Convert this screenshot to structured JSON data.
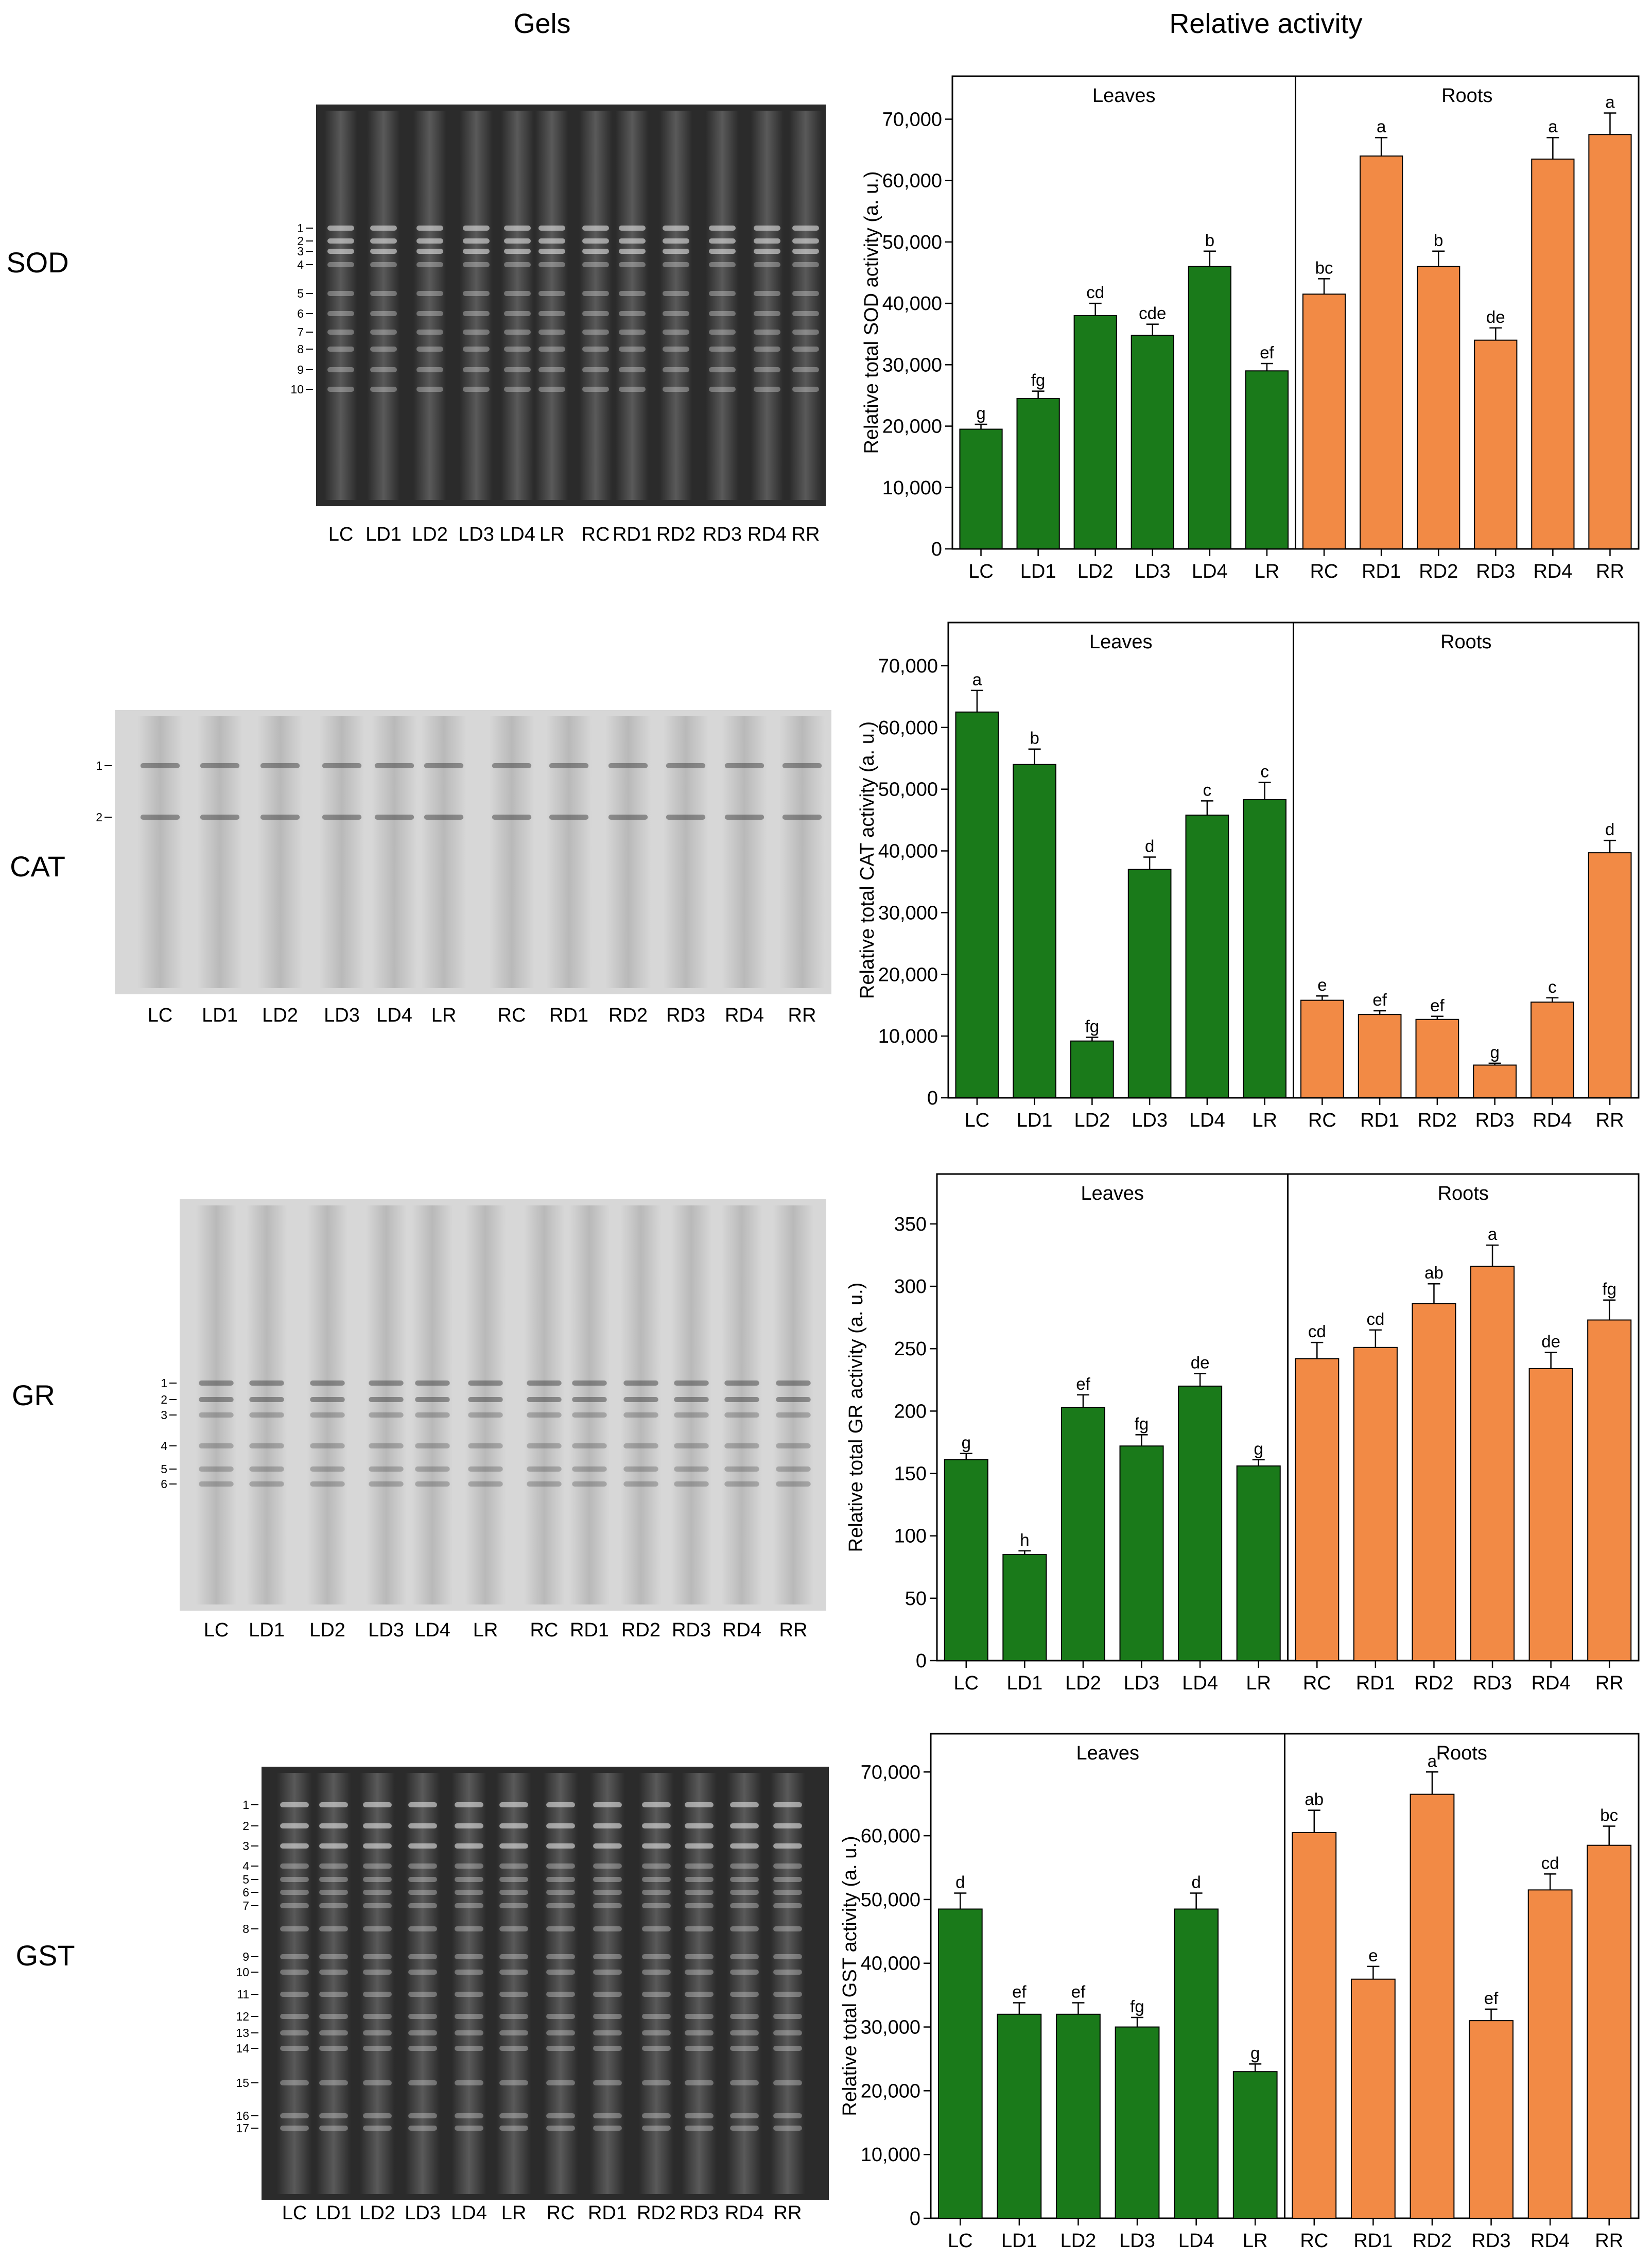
{
  "headers": {
    "gels": "Gels",
    "activity": "Relative activity"
  },
  "colors": {
    "leaves": "#1a7a1a",
    "roots": "#f28a45"
  },
  "panels": [
    {
      "enzyme": "SOD",
      "gel_style": "dark",
      "band_labels": [
        "1",
        "2",
        "3",
        "4",
        "5",
        "6",
        "7",
        "8",
        "9",
        "10"
      ],
      "gel_lanes": [
        "LC",
        "LD1",
        "LD2",
        "LD3",
        "LD4",
        "LR",
        "RC",
        "RD1",
        "RD2",
        "RD3",
        "RD4",
        "RR"
      ],
      "chart_data": {
        "type": "bar",
        "title": "SOD",
        "ylabel": "Relative total SOD activity (a. u.)",
        "ylim": [
          0,
          77000
        ],
        "yticks": [
          0,
          10000,
          20000,
          30000,
          40000,
          50000,
          60000,
          70000
        ],
        "ytick_labels": [
          "0",
          "10,000",
          "20,000",
          "30,000",
          "40,000",
          "50,000",
          "60,000",
          "70,000"
        ],
        "groups": [
          {
            "name": "Leaves",
            "categories": [
              "LC",
              "LD1",
              "LD2",
              "LD3",
              "LD4",
              "LR"
            ],
            "values": [
              19500,
              24500,
              38000,
              34800,
              46000,
              29000
            ],
            "errors": [
              800,
              1200,
              2000,
              1800,
              2500,
              1200
            ],
            "letters": [
              "g",
              "fg",
              "cd",
              "cde",
              "b",
              "ef"
            ]
          },
          {
            "name": "Roots",
            "categories": [
              "RC",
              "RD1",
              "RD2",
              "RD3",
              "RD4",
              "RR"
            ],
            "values": [
              41500,
              64000,
              46000,
              34000,
              63500,
              67500
            ],
            "errors": [
              2500,
              3000,
              2500,
              2000,
              3500,
              3500
            ],
            "letters": [
              "bc",
              "a",
              "b",
              "de",
              "a",
              "a"
            ]
          }
        ]
      }
    },
    {
      "enzyme": "CAT",
      "gel_style": "light",
      "band_labels": [
        "1",
        "2"
      ],
      "gel_lanes": [
        "LC",
        "LD1",
        "LD2",
        "LD3",
        "LD4",
        "LR",
        "RC",
        "RD1",
        "RD2",
        "RD3",
        "RD4",
        "RR"
      ],
      "chart_data": {
        "type": "bar",
        "title": "CAT",
        "ylabel": "Relative total CAT activity (a. u.)",
        "ylim": [
          0,
          77000
        ],
        "yticks": [
          0,
          10000,
          20000,
          30000,
          40000,
          50000,
          60000,
          70000
        ],
        "ytick_labels": [
          "0",
          "10,000",
          "20,000",
          "30,000",
          "40,000",
          "50,000",
          "60,000",
          "70,000"
        ],
        "groups": [
          {
            "name": "Leaves",
            "categories": [
              "LC",
              "LD1",
              "LD2",
              "LD3",
              "LD4",
              "LR"
            ],
            "values": [
              62500,
              54000,
              9200,
              37000,
              45800,
              48300
            ],
            "errors": [
              3500,
              2500,
              600,
              2000,
              2300,
              2800
            ],
            "letters": [
              "a",
              "b",
              "fg",
              "d",
              "c",
              "c"
            ]
          },
          {
            "name": "Roots",
            "categories": [
              "RC",
              "RD1",
              "RD2",
              "RD3",
              "RD4",
              "RR"
            ],
            "values": [
              15800,
              13500,
              12700,
              5300,
              15500,
              39700
            ],
            "errors": [
              700,
              600,
              500,
              300,
              700,
              2000
            ],
            "letters": [
              "e",
              "ef",
              "ef",
              "g",
              "c",
              "d"
            ]
          }
        ]
      }
    },
    {
      "enzyme": "GR",
      "gel_style": "light",
      "band_labels": [
        "1",
        "2",
        "3",
        "4",
        "5",
        "6"
      ],
      "gel_lanes": [
        "LC",
        "LD1",
        "LD2",
        "LD3",
        "LD4",
        "LR",
        "RC",
        "RD1",
        "RD2",
        "RD3",
        "RD4",
        "RR"
      ],
      "chart_data": {
        "type": "bar",
        "title": "GR",
        "ylabel": "Relative total GR activity (a. u.)",
        "ylim": [
          0,
          390
        ],
        "yticks": [
          0,
          50,
          100,
          150,
          200,
          250,
          300,
          350
        ],
        "ytick_labels": [
          "0",
          "50",
          "100",
          "150",
          "200",
          "250",
          "300",
          "350"
        ],
        "groups": [
          {
            "name": "Leaves",
            "categories": [
              "LC",
              "LD1",
              "LD2",
              "LD3",
              "LD4",
              "LR"
            ],
            "values": [
              161,
              85,
              203,
              172,
              220,
              156
            ],
            "errors": [
              5,
              3,
              10,
              9,
              10,
              5
            ],
            "letters": [
              "g",
              "h",
              "ef",
              "fg",
              "de",
              "g"
            ]
          },
          {
            "name": "Roots",
            "categories": [
              "RC",
              "RD1",
              "RD2",
              "RD3",
              "RD4",
              "RR"
            ],
            "values": [
              242,
              251,
              286,
              316,
              234,
              273
            ],
            "errors": [
              13,
              14,
              16,
              17,
              13,
              16
            ],
            "letters": [
              "cd",
              "cd",
              "ab",
              "a",
              "de",
              "fg"
            ]
          }
        ]
      }
    },
    {
      "enzyme": "GST",
      "gel_style": "dark",
      "band_labels": [
        "1",
        "2",
        "3",
        "4",
        "5",
        "6",
        "7",
        "8",
        "9",
        "10",
        "11",
        "12",
        "13",
        "14",
        "15",
        "16",
        "17"
      ],
      "gel_lanes": [
        "LC",
        "LD1",
        "LD2",
        "LD3",
        "LD4",
        "LR",
        "RC",
        "RD1",
        "RD2",
        "RD3",
        "RD4",
        "RR"
      ],
      "chart_data": {
        "type": "bar",
        "title": "GST",
        "ylabel": "Relative total GST activity (a. u.)",
        "ylim": [
          0,
          76000
        ],
        "yticks": [
          0,
          10000,
          20000,
          30000,
          40000,
          50000,
          60000,
          70000
        ],
        "ytick_labels": [
          "0",
          "10,000",
          "20,000",
          "30,000",
          "40,000",
          "50,000",
          "60,000",
          "70,000"
        ],
        "groups": [
          {
            "name": "Leaves",
            "categories": [
              "LC",
              "LD1",
              "LD2",
              "LD3",
              "LD4",
              "LR"
            ],
            "values": [
              48500,
              32000,
              32000,
              30000,
              48500,
              23000
            ],
            "errors": [
              2500,
              1800,
              1800,
              1500,
              2500,
              1200
            ],
            "letters": [
              "d",
              "ef",
              "ef",
              "fg",
              "d",
              "g"
            ]
          },
          {
            "name": "Roots",
            "categories": [
              "RC",
              "RD1",
              "RD2",
              "RD3",
              "RD4",
              "RR"
            ],
            "values": [
              60500,
              37500,
              66500,
              31000,
              51500,
              58500
            ],
            "errors": [
              3500,
              2000,
              3500,
              1800,
              2500,
              3000
            ],
            "letters": [
              "ab",
              "e",
              "a",
              "ef",
              "cd",
              "bc"
            ]
          }
        ]
      }
    }
  ]
}
